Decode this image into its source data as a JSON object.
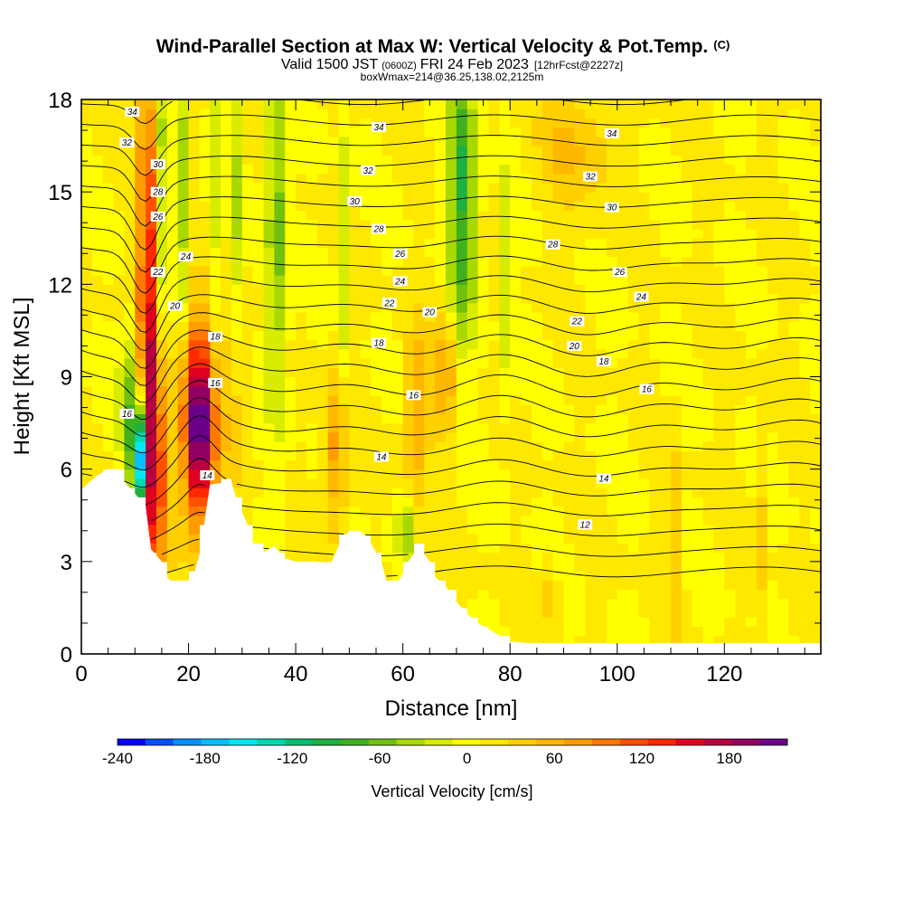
{
  "header": {
    "title_main": "Wind-Parallel Section at Max W: Vertical Velocity & Pot.Temp.",
    "title_mark": "(C)",
    "valid_a": "Valid 1500 JST",
    "valid_b": "(0600Z)",
    "valid_c": "FRI 24 Feb 2023",
    "valid_d": "[12hrFcst@2227z]",
    "box_line": "boxWmax=214@36.25,138.02,2125m"
  },
  "chart_data": {
    "type": "heatmap",
    "xlabel": "Distance [nm]",
    "ylabel": "Height [Kft MSL]",
    "xlim": [
      0,
      138
    ],
    "ylim": [
      0,
      18
    ],
    "xticks": [
      "0",
      "20",
      "40",
      "60",
      "80",
      "100",
      "120"
    ],
    "yticks": [
      "0",
      "3",
      "6",
      "9",
      "12",
      "15",
      "18"
    ],
    "xtick_values": [
      0,
      20,
      40,
      60,
      80,
      100,
      120
    ],
    "ytick_values": [
      0,
      3,
      6,
      9,
      12,
      15,
      18
    ],
    "background_value": 10,
    "colorbar": {
      "label": "Vertical Velocity [cm/s]",
      "min": -240,
      "max": 220,
      "tick_labels": [
        "-240",
        "-180",
        "-120",
        "-60",
        "0",
        "60",
        "120",
        "180"
      ],
      "tick_values": [
        -240,
        -180,
        -120,
        -60,
        0,
        60,
        120,
        180
      ],
      "colors": [
        "#0000ff",
        "#0050ff",
        "#0090ff",
        "#00c0ff",
        "#00e8f0",
        "#00d8b0",
        "#00c070",
        "#20b040",
        "#40b020",
        "#70c010",
        "#a8d800",
        "#d8ec00",
        "#ffff00",
        "#ffe800",
        "#ffd000",
        "#ffb800",
        "#ff9c00",
        "#ff7800",
        "#ff5000",
        "#ff2800",
        "#e00020",
        "#b80040",
        "#900060",
        "#6a0088"
      ]
    },
    "terrain": [
      [
        0,
        5.3
      ],
      [
        1,
        5.5
      ],
      [
        3,
        5.8
      ],
      [
        5,
        6
      ],
      [
        7,
        6
      ],
      [
        8,
        5.6
      ],
      [
        10,
        5.2
      ],
      [
        12,
        4.8
      ],
      [
        13,
        3.4
      ],
      [
        14,
        3.2
      ],
      [
        15,
        3
      ],
      [
        16,
        2.5
      ],
      [
        17,
        2.3
      ],
      [
        20,
        2.3
      ],
      [
        21,
        2.6
      ],
      [
        22,
        3.2
      ],
      [
        23,
        4.3
      ],
      [
        24,
        5.5
      ],
      [
        28,
        5.6
      ],
      [
        29,
        5
      ],
      [
        31,
        4.2
      ],
      [
        32,
        3.6
      ],
      [
        34,
        3.3
      ],
      [
        36,
        3.5
      ],
      [
        38,
        3.1
      ],
      [
        40,
        3
      ],
      [
        44,
        3
      ],
      [
        46,
        2.7
      ],
      [
        48,
        3.5
      ],
      [
        50,
        4
      ],
      [
        52,
        4
      ],
      [
        54,
        3.6
      ],
      [
        56,
        3
      ],
      [
        57,
        2.3
      ],
      [
        58,
        2
      ],
      [
        60,
        2.6
      ],
      [
        61,
        3
      ],
      [
        63,
        3.5
      ],
      [
        65,
        3
      ],
      [
        66,
        2.5
      ],
      [
        68,
        2.2
      ],
      [
        70,
        1.7
      ],
      [
        72,
        1.3
      ],
      [
        74,
        1.0
      ],
      [
        76,
        0.8
      ],
      [
        78,
        0.6
      ],
      [
        80,
        0.4
      ],
      [
        84,
        0.35
      ],
      [
        138,
        0.35
      ]
    ],
    "series": [
      {
        "peak": 220,
        "x": 22,
        "y": 7.4,
        "sx": 2.2,
        "sy": 2.3
      },
      {
        "peak": 150,
        "x": 12.5,
        "y": 12,
        "sx": 1.3,
        "sy": 5.5
      },
      {
        "peak": 110,
        "x": 13.8,
        "y": 6,
        "sx": 1.8,
        "sy": 2.5
      },
      {
        "peak": -230,
        "x": 11,
        "y": 6.2,
        "sx": 0.9,
        "sy": 1.2
      },
      {
        "peak": -80,
        "x": 9.5,
        "y": 7.8,
        "sx": 1.5,
        "sy": 1.8
      },
      {
        "peak": -60,
        "x": 14.5,
        "y": 15,
        "sx": 1.0,
        "sy": 4.0
      },
      {
        "peak": -50,
        "x": 19,
        "y": 15,
        "sx": 0.7,
        "sy": 3.5
      },
      {
        "peak": -40,
        "x": 24.5,
        "y": 14,
        "sx": 0.8,
        "sy": 4.5
      },
      {
        "peak": -40,
        "x": 29,
        "y": 14,
        "sx": 0.8,
        "sy": 4.5
      },
      {
        "peak": -70,
        "x": 36.5,
        "y": 14,
        "sx": 1.4,
        "sy": 4.5
      },
      {
        "peak": -40,
        "x": 49,
        "y": 13,
        "sx": 0.8,
        "sy": 3.5
      },
      {
        "peak": -100,
        "x": 71,
        "y": 15,
        "sx": 1.8,
        "sy": 3.5
      },
      {
        "peak": -40,
        "x": 79.5,
        "y": 12,
        "sx": 0.9,
        "sy": 3.0
      },
      {
        "peak": -60,
        "x": 60.5,
        "y": 4.0,
        "sx": 1.0,
        "sy": 0.8
      },
      {
        "peak": 70,
        "x": 47.5,
        "y": 6.5,
        "sx": 1.6,
        "sy": 1.8
      },
      {
        "peak": 60,
        "x": 62.5,
        "y": 7.8,
        "sx": 1.6,
        "sy": 2.0
      },
      {
        "peak": 60,
        "x": 68,
        "y": 9,
        "sx": 1.6,
        "sy": 1.5
      },
      {
        "peak": 40,
        "x": 92,
        "y": 16.5,
        "sx": 5.0,
        "sy": 1.5
      },
      {
        "peak": 40,
        "x": 29,
        "y": 8.5,
        "sx": 1.5,
        "sy": 2.5
      },
      {
        "peak": 30,
        "x": 87.5,
        "y": 2.0,
        "sx": 1.0,
        "sy": 0.8
      },
      {
        "peak": 40,
        "x": 110.5,
        "y": 4,
        "sx": 0.6,
        "sy": 2.5
      },
      {
        "peak": 40,
        "x": 126.5,
        "y": 4,
        "sx": 0.6,
        "sy": 2.5
      }
    ],
    "contour_labels": [
      {
        "text": "34",
        "x": 9.5,
        "y": 17.6
      },
      {
        "text": "32",
        "x": 8.5,
        "y": 16.6
      },
      {
        "text": "30",
        "x": 14.3,
        "y": 15.9
      },
      {
        "text": "28",
        "x": 14.3,
        "y": 15.0
      },
      {
        "text": "26",
        "x": 14.3,
        "y": 14.2
      },
      {
        "text": "22",
        "x": 14.3,
        "y": 12.4
      },
      {
        "text": "24",
        "x": 19.5,
        "y": 12.9
      },
      {
        "text": "20",
        "x": 17.5,
        "y": 11.3
      },
      {
        "text": "18",
        "x": 25,
        "y": 10.3
      },
      {
        "text": "16",
        "x": 25,
        "y": 8.8
      },
      {
        "text": "16",
        "x": 8.5,
        "y": 7.8
      },
      {
        "text": "14",
        "x": 23.5,
        "y": 5.8
      },
      {
        "text": "34",
        "x": 55.5,
        "y": 17.1
      },
      {
        "text": "32",
        "x": 53.5,
        "y": 15.7
      },
      {
        "text": "30",
        "x": 51,
        "y": 14.7
      },
      {
        "text": "28",
        "x": 55.5,
        "y": 13.8
      },
      {
        "text": "26",
        "x": 59.5,
        "y": 13.0
      },
      {
        "text": "24",
        "x": 59.5,
        "y": 12.1
      },
      {
        "text": "22",
        "x": 57.5,
        "y": 11.4
      },
      {
        "text": "20",
        "x": 65,
        "y": 11.1
      },
      {
        "text": "18",
        "x": 55.5,
        "y": 10.1
      },
      {
        "text": "16",
        "x": 62,
        "y": 8.4
      },
      {
        "text": "14",
        "x": 56,
        "y": 6.4
      },
      {
        "text": "34",
        "x": 99,
        "y": 16.9
      },
      {
        "text": "32",
        "x": 95,
        "y": 15.5
      },
      {
        "text": "30",
        "x": 99,
        "y": 14.5
      },
      {
        "text": "28",
        "x": 88,
        "y": 13.3
      },
      {
        "text": "26",
        "x": 100.5,
        "y": 12.4
      },
      {
        "text": "24",
        "x": 104.5,
        "y": 11.6
      },
      {
        "text": "22",
        "x": 92.5,
        "y": 10.8
      },
      {
        "text": "20",
        "x": 92,
        "y": 10.0
      },
      {
        "text": "18",
        "x": 97.5,
        "y": 9.5
      },
      {
        "text": "16",
        "x": 105.5,
        "y": 8.6
      },
      {
        "text": "14",
        "x": 97.5,
        "y": 5.7
      },
      {
        "text": "12",
        "x": 94,
        "y": 4.2
      }
    ]
  }
}
